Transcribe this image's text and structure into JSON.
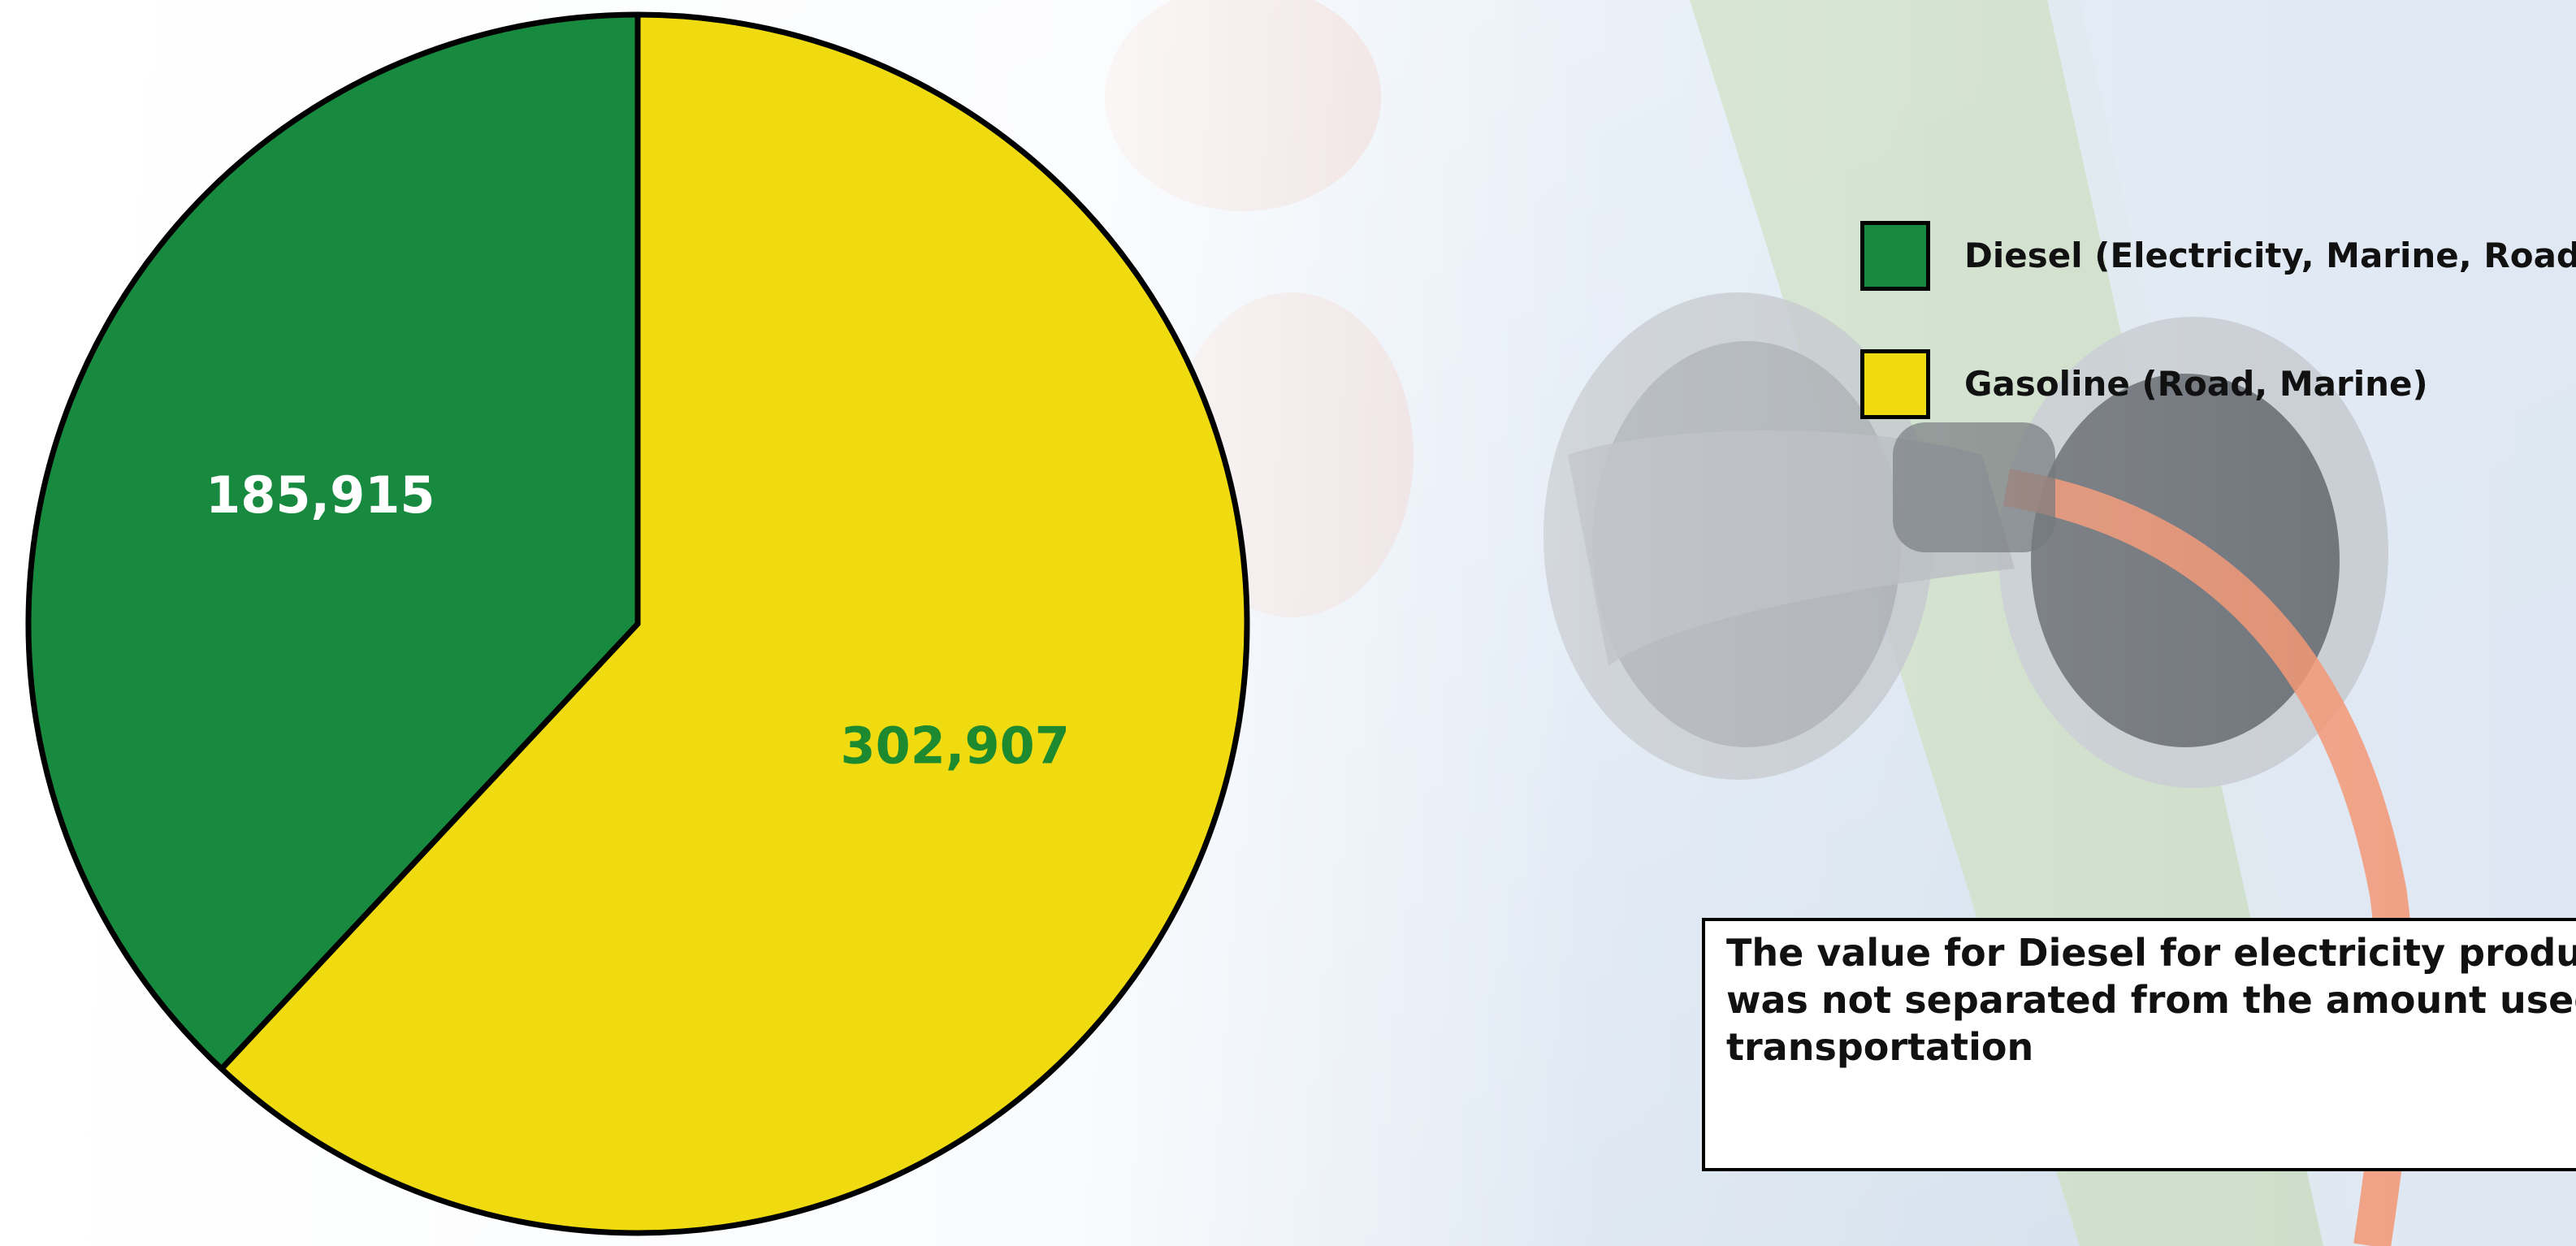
{
  "colors": {
    "diesel": "#178a3f",
    "gasoline": "#efdb10",
    "label_on_diesel": "#ffffff",
    "label_on_gasoline": "#1e8a30",
    "outline": "#000000"
  },
  "chart_data": {
    "type": "pie",
    "title": "",
    "start_angle_deg": 0,
    "direction": "clockwise",
    "slices": [
      {
        "label": "Gasoline (Road, Marine)",
        "value": 302907,
        "display": "302,907",
        "color": "#efdb10",
        "label_color": "#1e8a30"
      },
      {
        "label": "Diesel (Electricity, Marine, Road)",
        "value": 185915,
        "display": "185,915",
        "color": "#178a3f",
        "label_color": "#ffffff"
      }
    ],
    "legend": {
      "placement": "right",
      "entries": [
        {
          "label": "Diesel (Electricity, Marine, Road)",
          "color": "#178a3f"
        },
        {
          "label": "Gasoline (Road, Marine)",
          "color": "#efdb10"
        }
      ]
    }
  },
  "note": {
    "text": "The value for Diesel for electricity production was not separated from the amount used for transportation"
  }
}
